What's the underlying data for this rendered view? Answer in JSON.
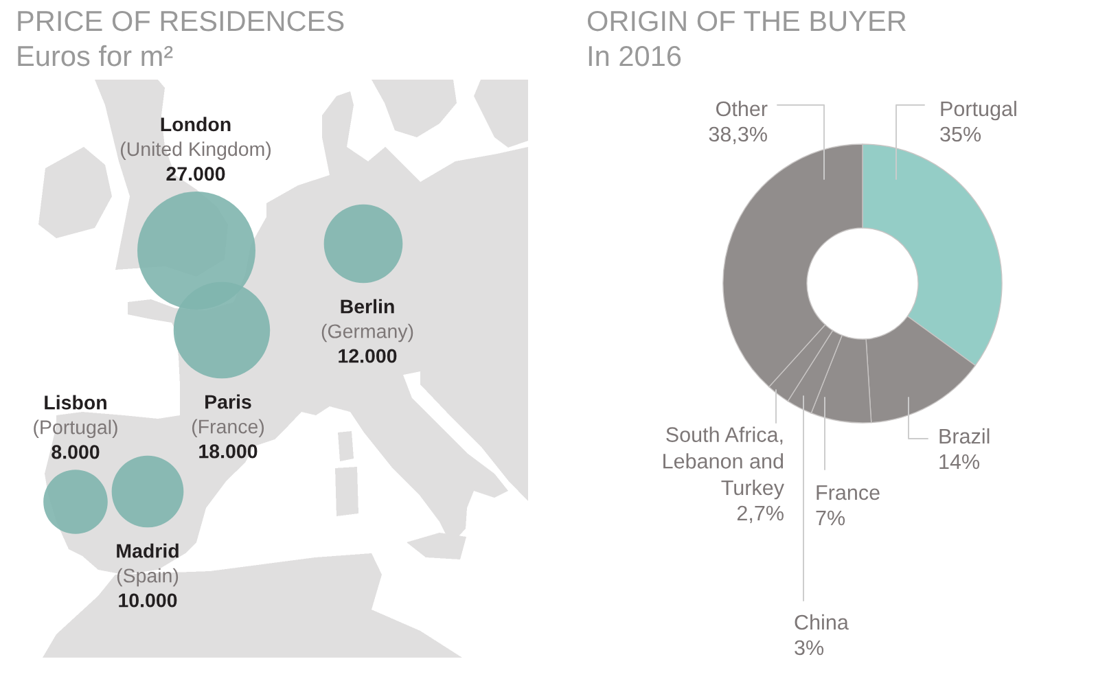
{
  "chart_data": [
    {
      "type": "other",
      "title": "PRICE OF RESIDENCES",
      "subtitle": "Euros for m²",
      "categories": [
        "London\n(United Kingdom)",
        "Berlin\n(Germany)",
        "Paris\n(France)",
        "Lisbon\n(Portugal)",
        "Madrid\n(Spain)"
      ],
      "values": [
        27000,
        12000,
        18000,
        8000,
        10000
      ],
      "value_labels": [
        "27.000",
        "12.000",
        "18.000",
        "8.000",
        "10.000"
      ],
      "color": "#7fb5ae"
    },
    {
      "type": "donut",
      "title": "ORIGIN OF THE BUYER",
      "subtitle": "In 2016",
      "categories": [
        "Portugal",
        "Brazil",
        "France",
        "China",
        "South Africa,\nLebanon and\nTurkey",
        "Other"
      ],
      "values": [
        35,
        14,
        7,
        3,
        2.7,
        38.3
      ],
      "value_labels": [
        "35%",
        "14%",
        "7%",
        "3%",
        "2,7%",
        "38,3%"
      ],
      "colors": [
        "#94cdc6",
        "#918d8c",
        "#918d8c",
        "#918d8c",
        "#918d8c",
        "#918d8c"
      ]
    }
  ]
}
